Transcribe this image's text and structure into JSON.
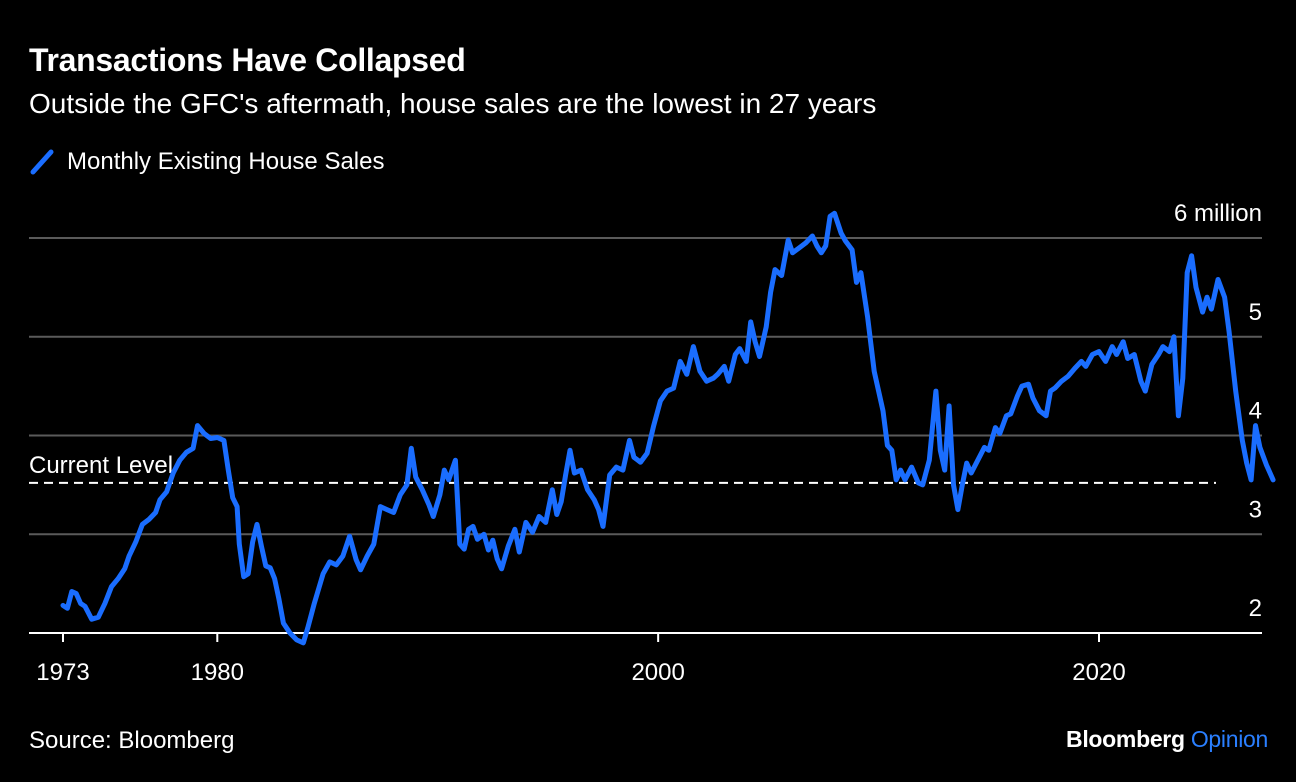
{
  "colors": {
    "background": "#000000",
    "text": "#ffffff",
    "gridline": "#5a5a5a",
    "axis": "#ffffff",
    "series": "#1a6dff",
    "reference_line": "#ffffff",
    "brand_accent": "#2a7fff"
  },
  "header": {
    "title": "Transactions Have Collapsed",
    "subtitle": "Outside the GFC's aftermath, house sales are the lowest in 27 years"
  },
  "footer": {
    "source": "Source: Bloomberg",
    "brand_main": "Bloomberg",
    "brand_accent": "Opinion"
  },
  "chart_data": {
    "type": "line",
    "series": [
      {
        "name": "Monthly Existing House Sales",
        "color": "#1a6dff",
        "points": [
          [
            1973.0,
            2.28
          ],
          [
            1973.2,
            2.25
          ],
          [
            1973.4,
            2.42
          ],
          [
            1973.6,
            2.4
          ],
          [
            1973.8,
            2.3
          ],
          [
            1974.0,
            2.27
          ],
          [
            1974.3,
            2.14
          ],
          [
            1974.6,
            2.16
          ],
          [
            1974.9,
            2.3
          ],
          [
            1975.2,
            2.47
          ],
          [
            1975.5,
            2.55
          ],
          [
            1975.8,
            2.65
          ],
          [
            1976.0,
            2.78
          ],
          [
            1976.3,
            2.92
          ],
          [
            1976.6,
            3.1
          ],
          [
            1976.9,
            3.15
          ],
          [
            1977.2,
            3.22
          ],
          [
            1977.4,
            3.35
          ],
          [
            1977.7,
            3.43
          ],
          [
            1978.0,
            3.62
          ],
          [
            1978.3,
            3.75
          ],
          [
            1978.6,
            3.83
          ],
          [
            1978.9,
            3.87
          ],
          [
            1979.1,
            4.1
          ],
          [
            1979.4,
            4.02
          ],
          [
            1979.7,
            3.97
          ],
          [
            1980.0,
            3.98
          ],
          [
            1980.3,
            3.95
          ],
          [
            1980.5,
            3.65
          ],
          [
            1980.7,
            3.37
          ],
          [
            1980.9,
            3.28
          ],
          [
            1981.0,
            2.9
          ],
          [
            1981.2,
            2.57
          ],
          [
            1981.4,
            2.6
          ],
          [
            1981.6,
            2.92
          ],
          [
            1981.8,
            3.1
          ],
          [
            1982.0,
            2.88
          ],
          [
            1982.2,
            2.68
          ],
          [
            1982.4,
            2.66
          ],
          [
            1982.6,
            2.55
          ],
          [
            1982.8,
            2.34
          ],
          [
            1983.0,
            2.1
          ],
          [
            1983.3,
            2.0
          ],
          [
            1983.6,
            1.93
          ],
          [
            1983.9,
            1.9
          ],
          [
            1984.1,
            2.05
          ],
          [
            1984.4,
            2.3
          ],
          [
            1984.8,
            2.6
          ],
          [
            1985.1,
            2.72
          ],
          [
            1985.4,
            2.69
          ],
          [
            1985.7,
            2.78
          ],
          [
            1986.0,
            2.98
          ],
          [
            1986.3,
            2.74
          ],
          [
            1986.5,
            2.64
          ],
          [
            1986.8,
            2.78
          ],
          [
            1987.1,
            2.9
          ],
          [
            1987.4,
            3.28
          ],
          [
            1987.7,
            3.25
          ],
          [
            1988.0,
            3.22
          ],
          [
            1988.3,
            3.4
          ],
          [
            1988.6,
            3.5
          ],
          [
            1988.8,
            3.87
          ],
          [
            1989.0,
            3.58
          ],
          [
            1989.3,
            3.45
          ],
          [
            1989.6,
            3.3
          ],
          [
            1989.8,
            3.18
          ],
          [
            1990.1,
            3.4
          ],
          [
            1990.3,
            3.65
          ],
          [
            1990.5,
            3.55
          ],
          [
            1990.8,
            3.75
          ],
          [
            1991.0,
            2.9
          ],
          [
            1991.2,
            2.85
          ],
          [
            1991.4,
            3.05
          ],
          [
            1991.6,
            3.08
          ],
          [
            1991.8,
            2.95
          ],
          [
            1992.1,
            3.0
          ],
          [
            1992.3,
            2.84
          ],
          [
            1992.5,
            2.94
          ],
          [
            1992.7,
            2.75
          ],
          [
            1992.9,
            2.65
          ],
          [
            1993.2,
            2.88
          ],
          [
            1993.5,
            3.05
          ],
          [
            1993.7,
            2.82
          ],
          [
            1994.0,
            3.12
          ],
          [
            1994.3,
            3.02
          ],
          [
            1994.6,
            3.18
          ],
          [
            1994.9,
            3.12
          ],
          [
            1995.2,
            3.45
          ],
          [
            1995.4,
            3.2
          ],
          [
            1995.6,
            3.33
          ],
          [
            1995.8,
            3.6
          ],
          [
            1996.0,
            3.85
          ],
          [
            1996.2,
            3.62
          ],
          [
            1996.5,
            3.65
          ],
          [
            1996.8,
            3.45
          ],
          [
            1997.1,
            3.35
          ],
          [
            1997.3,
            3.25
          ],
          [
            1997.5,
            3.08
          ],
          [
            1997.8,
            3.6
          ],
          [
            1998.1,
            3.68
          ],
          [
            1998.4,
            3.65
          ],
          [
            1998.7,
            3.95
          ],
          [
            1998.9,
            3.78
          ],
          [
            1999.2,
            3.73
          ],
          [
            1999.5,
            3.82
          ],
          [
            1999.8,
            4.1
          ],
          [
            2000.1,
            4.35
          ],
          [
            2000.4,
            4.45
          ],
          [
            2000.7,
            4.48
          ],
          [
            2001.0,
            4.75
          ],
          [
            2001.3,
            4.62
          ],
          [
            2001.6,
            4.9
          ],
          [
            2001.9,
            4.65
          ],
          [
            2002.2,
            4.55
          ],
          [
            2002.5,
            4.58
          ],
          [
            2002.7,
            4.62
          ],
          [
            2003.0,
            4.7
          ],
          [
            2003.2,
            4.55
          ],
          [
            2003.5,
            4.82
          ],
          [
            2003.7,
            4.88
          ],
          [
            2004.0,
            4.75
          ],
          [
            2004.2,
            5.15
          ],
          [
            2004.4,
            4.95
          ],
          [
            2004.6,
            4.8
          ],
          [
            2004.9,
            5.1
          ],
          [
            2005.1,
            5.45
          ],
          [
            2005.3,
            5.68
          ],
          [
            2005.6,
            5.62
          ],
          [
            2005.9,
            5.98
          ],
          [
            2006.1,
            5.85
          ],
          [
            2006.4,
            5.9
          ],
          [
            2006.7,
            5.95
          ],
          [
            2007.0,
            6.02
          ],
          [
            2007.2,
            5.92
          ],
          [
            2007.4,
            5.85
          ],
          [
            2007.6,
            5.92
          ],
          [
            2007.8,
            6.22
          ],
          [
            2008.0,
            6.25
          ],
          [
            2008.3,
            6.05
          ],
          [
            2008.5,
            5.97
          ],
          [
            2008.8,
            5.88
          ],
          [
            2009.0,
            5.55
          ],
          [
            2009.2,
            5.65
          ],
          [
            2009.5,
            5.2
          ],
          [
            2009.8,
            4.65
          ],
          [
            2010.0,
            4.45
          ],
          [
            2010.2,
            4.25
          ],
          [
            2010.4,
            3.9
          ],
          [
            2010.6,
            3.85
          ],
          [
            2010.8,
            3.55
          ],
          [
            2011.0,
            3.65
          ],
          [
            2011.2,
            3.55
          ],
          [
            2011.5,
            3.68
          ],
          [
            2011.8,
            3.52
          ],
          [
            2012.0,
            3.5
          ],
          [
            2012.3,
            3.75
          ],
          [
            2012.6,
            4.45
          ],
          [
            2012.8,
            3.85
          ],
          [
            2013.0,
            3.65
          ],
          [
            2013.2,
            4.3
          ],
          [
            2013.4,
            3.5
          ],
          [
            2013.6,
            3.25
          ],
          [
            2013.8,
            3.5
          ],
          [
            2014.0,
            3.72
          ],
          [
            2014.2,
            3.62
          ],
          [
            2014.5,
            3.75
          ],
          [
            2014.8,
            3.88
          ],
          [
            2015.0,
            3.85
          ],
          [
            2015.3,
            4.08
          ],
          [
            2015.5,
            4.02
          ],
          [
            2015.8,
            4.2
          ],
          [
            2016.0,
            4.22
          ],
          [
            2016.3,
            4.4
          ],
          [
            2016.5,
            4.5
          ],
          [
            2016.8,
            4.52
          ],
          [
            2017.0,
            4.38
          ],
          [
            2017.3,
            4.25
          ],
          [
            2017.6,
            4.2
          ],
          [
            2017.8,
            4.45
          ],
          [
            2018.0,
            4.48
          ],
          [
            2018.3,
            4.55
          ],
          [
            2018.6,
            4.6
          ],
          [
            2018.9,
            4.68
          ],
          [
            2019.2,
            4.75
          ],
          [
            2019.4,
            4.7
          ],
          [
            2019.7,
            4.82
          ],
          [
            2020.0,
            4.85
          ],
          [
            2020.3,
            4.75
          ],
          [
            2020.6,
            4.9
          ],
          [
            2020.8,
            4.82
          ],
          [
            2021.1,
            4.95
          ],
          [
            2021.3,
            4.78
          ],
          [
            2021.6,
            4.82
          ],
          [
            2021.9,
            4.55
          ],
          [
            2022.1,
            4.45
          ],
          [
            2022.4,
            4.72
          ],
          [
            2022.7,
            4.82
          ],
          [
            2022.9,
            4.9
          ],
          [
            2023.2,
            4.85
          ],
          [
            2023.4,
            5.0
          ],
          [
            2023.6,
            4.2
          ],
          [
            2023.8,
            4.58
          ],
          [
            2024.0,
            5.65
          ],
          [
            2024.2,
            5.82
          ],
          [
            2024.4,
            5.5
          ],
          [
            2024.7,
            5.25
          ],
          [
            2024.9,
            5.4
          ],
          [
            2025.1,
            5.28
          ],
          [
            2025.4,
            5.58
          ],
          [
            2025.7,
            5.4
          ],
          [
            2025.9,
            5.05
          ],
          [
            2026.2,
            4.45
          ],
          [
            2026.5,
            3.95
          ],
          [
            2026.7,
            3.72
          ],
          [
            2026.9,
            3.55
          ],
          [
            2027.1,
            4.1
          ],
          [
            2027.3,
            3.88
          ],
          [
            2027.6,
            3.7
          ],
          [
            2027.9,
            3.55
          ]
        ]
      }
    ],
    "legend_label": "Monthly Existing House Sales",
    "legend_position": "top-left",
    "reference_line": {
      "label": "Current Level",
      "value": 3.52,
      "style": "dashed"
    },
    "x_ticks": [
      {
        "value": 1973,
        "label": "1973"
      },
      {
        "value": 1980,
        "label": "1980"
      },
      {
        "value": 2000,
        "label": "2000"
      },
      {
        "value": 2020,
        "label": "2020"
      }
    ],
    "y_ticks": [
      {
        "value": 2,
        "label": "2"
      },
      {
        "value": 3,
        "label": "3"
      },
      {
        "value": 4,
        "label": "4"
      },
      {
        "value": 5,
        "label": "5"
      },
      {
        "value": 6,
        "label": "6 million"
      }
    ],
    "xlim": [
      1973,
      2028.5
    ],
    "ylim": [
      2,
      6
    ],
    "grid": "horizontal",
    "y_axis_side": "right"
  }
}
